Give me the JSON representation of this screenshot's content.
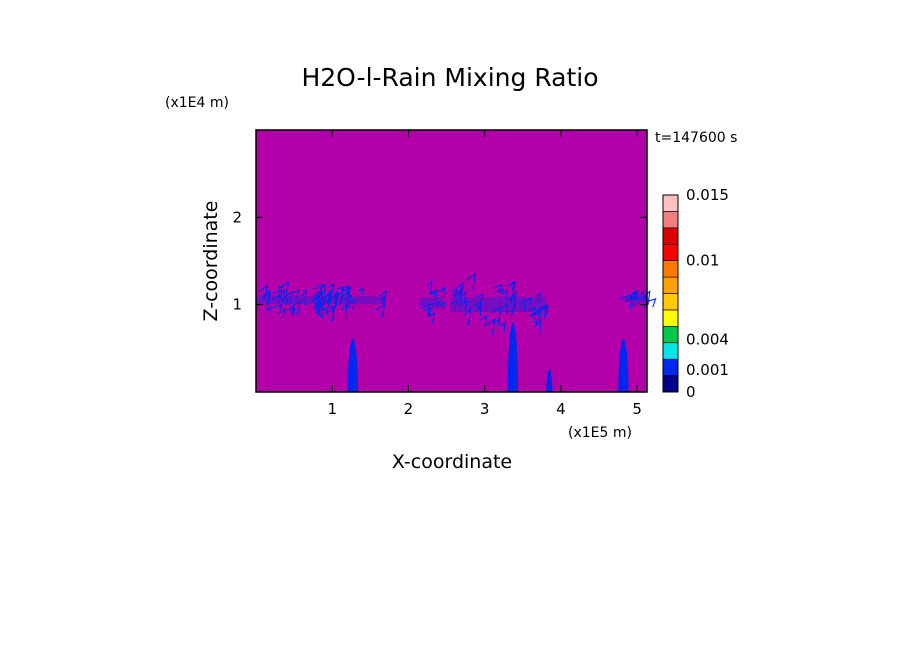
{
  "chart_data": {
    "type": "heatmap",
    "title": "H2O-l-Rain Mixing Ratio",
    "xlabel": "X-coordinate",
    "ylabel": "Z-coordinate",
    "x_unit": "(x1E5 m)",
    "y_unit": "(x1E4 m)",
    "time_label": "t=147600 s",
    "xlim": [
      0,
      5.13
    ],
    "ylim": [
      0,
      3
    ],
    "x_ticks": [
      1,
      2,
      3,
      4,
      5
    ],
    "y_ticks": [
      1,
      2
    ],
    "grid": false,
    "background_value_color": "#b400aa",
    "colorbar": {
      "labels": [
        {
          "text": "0.015",
          "value": 0.015
        },
        {
          "text": "0.01",
          "value": 0.01
        },
        {
          "text": "0.004",
          "value": 0.004
        },
        {
          "text": "0.001",
          "value": 0.001
        },
        {
          "text": "0",
          "value": 0
        }
      ],
      "colors": [
        "#00008c",
        "#0028f0",
        "#00e6e6",
        "#00c84b",
        "#ffff00",
        "#ffc800",
        "#ffa000",
        "#ff7800",
        "#ff0000",
        "#dc0000",
        "#f08080",
        "#ffc0c0"
      ]
    },
    "features": [
      {
        "kind": "layer",
        "x": [
          0.0,
          1.7
        ],
        "z": [
          0.9,
          1.2
        ],
        "color": "#0028f0"
      },
      {
        "kind": "layer",
        "x": [
          2.15,
          2.45
        ],
        "z": [
          0.82,
          1.22
        ],
        "color": "#0028f0"
      },
      {
        "kind": "layer",
        "x": [
          2.55,
          3.8
        ],
        "z": [
          0.72,
          1.28
        ],
        "color": "#0028f0"
      },
      {
        "kind": "layer",
        "x": [
          4.78,
          5.13
        ],
        "z": [
          1.0,
          1.15
        ],
        "color": "#0028f0"
      },
      {
        "kind": "shaft",
        "x": 1.27,
        "z_top": 0.62,
        "color": "#0028f0"
      },
      {
        "kind": "shaft",
        "x": 3.37,
        "z_top": 0.8,
        "color": "#0028f0"
      },
      {
        "kind": "shaft",
        "x": 3.85,
        "z_top": 0.28,
        "color": "#0028f0"
      },
      {
        "kind": "shaft",
        "x": 4.82,
        "z_top": 0.62,
        "color": "#0028f0"
      }
    ]
  }
}
